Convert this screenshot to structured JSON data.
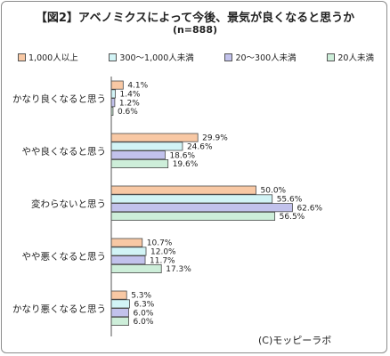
{
  "chart_data": {
    "type": "bar",
    "orientation": "horizontal",
    "title": "【図2】アベノミクスによって今後、景気が良くなると思うか",
    "subtitle": "(n=888)",
    "categories": [
      "かなり良くなると思う",
      "やや良くなると思う",
      "変わらないと思う",
      "やや悪くなると思う",
      "かなり悪くなると思う"
    ],
    "series": [
      {
        "name": "1,000人以上",
        "color": "#f8c8a4",
        "values": [
          4.1,
          29.9,
          50.0,
          10.7,
          5.3
        ]
      },
      {
        "name": "300〜1,000人未満",
        "color": "#d2f4f6",
        "values": [
          1.4,
          24.6,
          55.6,
          12.0,
          6.3
        ]
      },
      {
        "name": "20〜300人未満",
        "color": "#c2c2ec",
        "values": [
          1.2,
          18.6,
          62.6,
          11.7,
          6.0
        ]
      },
      {
        "name": "20人未満",
        "color": "#cdeed9",
        "values": [
          0.6,
          19.6,
          56.5,
          17.3,
          6.0
        ]
      }
    ],
    "value_suffix": "%",
    "xlim": [
      0,
      70
    ],
    "legend_position": "top",
    "grid": false
  },
  "credit": "(C)モッピーラボ"
}
